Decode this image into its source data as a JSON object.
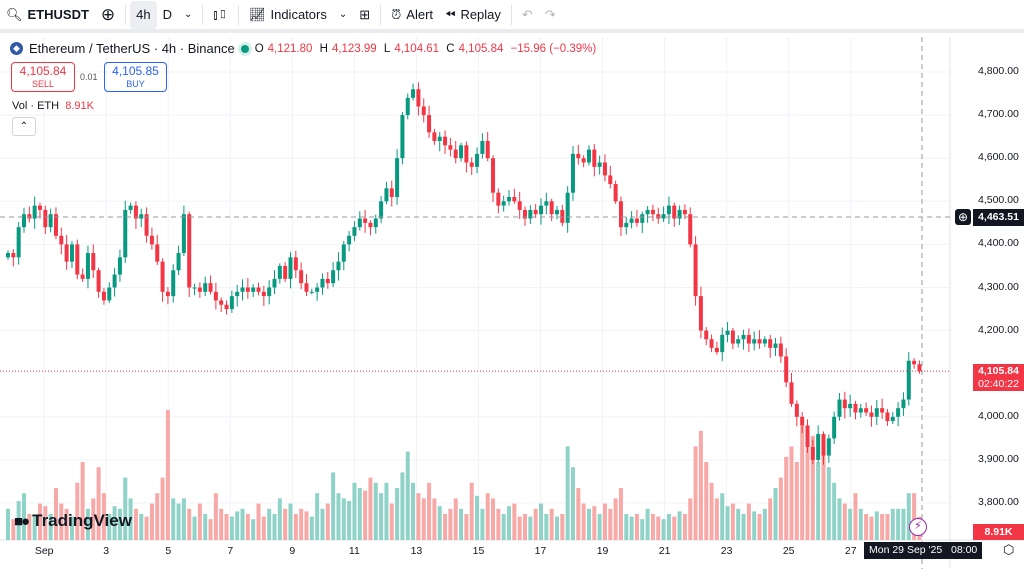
{
  "toolbar": {
    "symbol": "ETHUSDT",
    "interval_active": "4h",
    "interval_alt": "D",
    "indicators": "Indicators",
    "alert": "Alert",
    "replay": "Replay"
  },
  "legend": {
    "title": "Ethereum / TetherUS · 4h · Binance",
    "o_label": "O",
    "o": "4,121.80",
    "h_label": "H",
    "h": "4,123.99",
    "l_label": "L",
    "l": "4,104.61",
    "c_label": "C",
    "c": "4,105.84",
    "change": "−15.96 (−0.39%)"
  },
  "trade": {
    "sell_price": "4,105.84",
    "sell_label": "SELL",
    "spread": "0.01",
    "buy_price": "4,105.85",
    "buy_label": "BUY"
  },
  "volume_legend": {
    "label": "Vol · ETH",
    "value": "8.91K"
  },
  "brand": "TradingView",
  "colors": {
    "up": "#089981",
    "down": "#f23645",
    "vol_up": "#8fd3c8",
    "vol_down": "#f7a9a7"
  },
  "crosshair": {
    "price": "4,463.51",
    "price_value": 4463.51,
    "time": "Mon 29 Sep '25   08:00"
  },
  "last_price": {
    "price": "4,105.84",
    "countdown": "02:40:22",
    "value": 4105.84
  },
  "volume_tag": "8.91K",
  "chart_data": {
    "type": "candlestick",
    "title": "Ethereum / TetherUS · 4h · Binance",
    "ylim": [
      3760,
      4860
    ],
    "y_ticks": [
      "4,800.00",
      "4,700.00",
      "4,600.00",
      "4,500.00",
      "4,400.00",
      "4,300.00",
      "4,200.00",
      "4,000.00",
      "3,900.00",
      "3,800.00"
    ],
    "y_tick_values": [
      4800,
      4700,
      4600,
      4500,
      4400,
      4300,
      4200,
      4000,
      3900,
      3800
    ],
    "x_ticks": [
      "Sep",
      "3",
      "5",
      "7",
      "9",
      "11",
      "13",
      "15",
      "17",
      "19",
      "21",
      "23",
      "25",
      "27"
    ],
    "x_tick_candle_index": [
      7,
      19,
      31,
      43,
      55,
      67,
      79,
      91,
      103,
      115,
      127,
      139,
      151,
      163
    ],
    "first_open": 4370,
    "closes": [
      4380,
      4370,
      4440,
      4470,
      4460,
      4490,
      4480,
      4440,
      4470,
      4420,
      4400,
      4360,
      4400,
      4330,
      4320,
      4380,
      4340,
      4290,
      4270,
      4300,
      4330,
      4370,
      4480,
      4490,
      4460,
      4470,
      4420,
      4400,
      4360,
      4290,
      4280,
      4340,
      4380,
      4470,
      4300,
      4300,
      4290,
      4310,
      4290,
      4270,
      4260,
      4250,
      4280,
      4290,
      4300,
      4290,
      4300,
      4290,
      4280,
      4300,
      4320,
      4350,
      4320,
      4370,
      4340,
      4310,
      4290,
      4290,
      4300,
      4320,
      4310,
      4340,
      4360,
      4400,
      4420,
      4440,
      4460,
      4450,
      4440,
      4460,
      4500,
      4530,
      4510,
      4600,
      4700,
      4740,
      4760,
      4720,
      4700,
      4660,
      4640,
      4650,
      4630,
      4620,
      4600,
      4630,
      4590,
      4580,
      4610,
      4640,
      4600,
      4520,
      4490,
      4500,
      4510,
      4500,
      4480,
      4460,
      4480,
      4470,
      4490,
      4500,
      4470,
      4480,
      4450,
      4520,
      4610,
      4600,
      4590,
      4620,
      4580,
      4590,
      4560,
      4540,
      4500,
      4440,
      4450,
      4460,
      4450,
      4470,
      4480,
      4470,
      4460,
      4470,
      4490,
      4460,
      4480,
      4470,
      4400,
      4280,
      4200,
      4180,
      4160,
      4150,
      4190,
      4200,
      4170,
      4180,
      4190,
      4170,
      4180,
      4170,
      4180,
      4160,
      4170,
      4140,
      4080,
      4030,
      4000,
      3980,
      3930,
      3900,
      3960,
      3910,
      3950,
      4000,
      4040,
      4020,
      4030,
      4010,
      4020,
      4010,
      4000,
      4020,
      4010,
      3990,
      4000,
      4020,
      4040,
      4130,
      4121.8,
      4105.84
    ],
    "volumes_k": [
      12,
      8,
      15,
      18,
      10,
      9,
      14,
      13,
      10,
      20,
      14,
      12,
      9,
      22,
      30,
      12,
      16,
      28,
      18,
      10,
      13,
      12,
      24,
      16,
      12,
      10,
      9,
      14,
      18,
      24,
      50,
      16,
      14,
      16,
      12,
      9,
      14,
      10,
      8,
      18,
      12,
      10,
      9,
      11,
      12,
      10,
      8,
      14,
      9,
      12,
      10,
      16,
      12,
      14,
      10,
      12,
      11,
      9,
      18,
      12,
      14,
      26,
      18,
      16,
      15,
      22,
      20,
      19,
      24,
      22,
      18,
      22,
      14,
      20,
      26,
      34,
      22,
      18,
      16,
      22,
      16,
      13,
      10,
      12,
      16,
      12,
      10,
      22,
      17,
      12,
      18,
      16,
      12,
      10,
      13,
      14,
      9,
      10,
      9,
      12,
      14,
      10,
      12,
      9,
      10,
      36,
      28,
      20,
      14,
      12,
      13,
      10,
      14,
      12,
      16,
      20,
      10,
      9,
      10,
      8,
      12,
      10,
      9,
      8,
      10,
      9,
      11,
      10,
      16,
      36,
      42,
      30,
      22,
      16,
      18,
      13,
      14,
      12,
      10,
      14,
      11,
      10,
      12,
      16,
      20,
      24,
      32,
      36,
      30,
      44,
      38,
      40,
      30,
      34,
      28,
      22,
      16,
      14,
      12,
      18,
      12,
      10,
      9,
      11,
      10,
      10,
      12,
      12,
      12,
      18,
      18,
      8.91
    ]
  }
}
